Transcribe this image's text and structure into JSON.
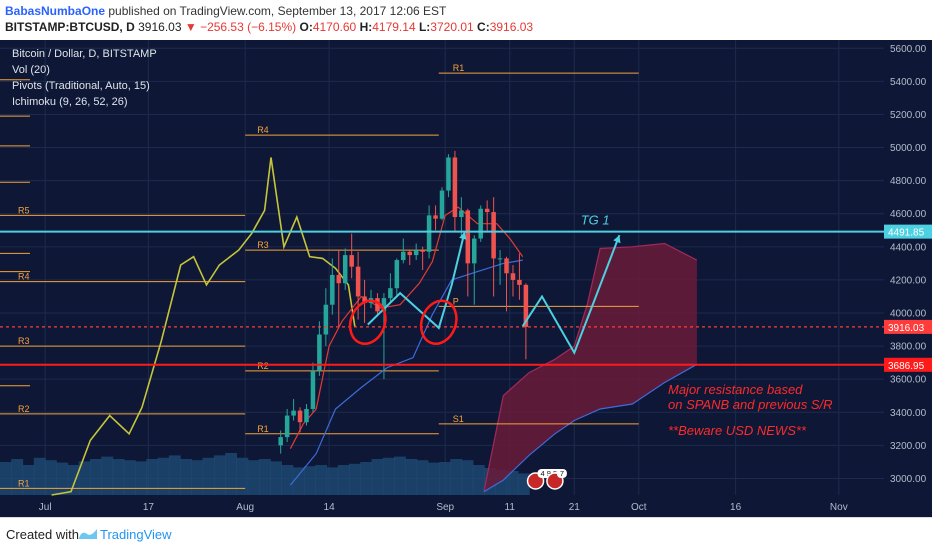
{
  "header": {
    "author": "BabasNumbaOne",
    "published_text": " published on TradingView.com, September 13, 2017 12:06 EST",
    "symbol": "BITSTAMP:BTCUSD, D",
    "price": "3916.03",
    "change": "▼ −256.53 (−6.15%)",
    "o_label": "O:",
    "o_value": "4170.60",
    "h_label": "H:",
    "h_value": "4179.14",
    "l_label": "L:",
    "l_value": "3720.01",
    "c_label": "C:",
    "c_value": "3916.03"
  },
  "legend": [
    "Bitcoin / Dollar, D, BITSTAMP",
    "Vol (20)",
    "Pivots (Traditional, Auto, 15)",
    "Ichimoku (9, 26, 52, 26)"
  ],
  "footer": {
    "created_with": "Created with",
    "brand": "TradingView"
  },
  "colors": {
    "background": "#0e1836",
    "up": "#26a69a",
    "down": "#ef5350",
    "pivot": "#f4a23c",
    "cyan": "#4dd0e1",
    "red_line": "#ff1a1a",
    "tenkan": "#e53935",
    "kijun": "#3f6ad8",
    "chikou": "#c6c43a",
    "cloud": "#6a1b3a"
  },
  "chart_data": {
    "type": "candlestick",
    "y_range": [
      2900,
      5650
    ],
    "y_ticks": [
      3000,
      3200,
      3400,
      3600,
      3800,
      4000,
      4200,
      4400,
      4600,
      4800,
      5000,
      5200,
      5400,
      5600
    ],
    "y_tick_labels": [
      "3000.00",
      "3200.00",
      "3400.00",
      "3600.00",
      "3800.00",
      "4000.00",
      "4200.00",
      "4400.00",
      "4600.00",
      "4800.00",
      "5000.00",
      "5200.00",
      "5400.00",
      "5600.00"
    ],
    "x_range": [
      "2017-06-24",
      "2017-11-08"
    ],
    "x_ticks": [
      {
        "date": "2017-07-01",
        "label": "Jul"
      },
      {
        "date": "2017-07-17",
        "label": "17"
      },
      {
        "date": "2017-08-01",
        "label": "Aug"
      },
      {
        "date": "2017-08-14",
        "label": "14"
      },
      {
        "date": "2017-09-01",
        "label": "Sep"
      },
      {
        "date": "2017-09-11",
        "label": "11"
      },
      {
        "date": "2017-09-21",
        "label": "21"
      },
      {
        "date": "2017-10-01",
        "label": "Oct"
      },
      {
        "date": "2017-10-16",
        "label": "16"
      },
      {
        "date": "2017-11-01",
        "label": "Nov"
      }
    ],
    "candles": [
      {
        "d": "2017-08-06",
        "o": 3200,
        "h": 3290,
        "l": 3150,
        "c": 3250
      },
      {
        "d": "2017-08-07",
        "o": 3250,
        "h": 3420,
        "l": 3220,
        "c": 3380
      },
      {
        "d": "2017-08-08",
        "o": 3380,
        "h": 3480,
        "l": 3350,
        "c": 3410
      },
      {
        "d": "2017-08-09",
        "o": 3410,
        "h": 3430,
        "l": 3280,
        "c": 3340
      },
      {
        "d": "2017-08-10",
        "o": 3340,
        "h": 3450,
        "l": 3320,
        "c": 3420
      },
      {
        "d": "2017-08-11",
        "o": 3420,
        "h": 3700,
        "l": 3400,
        "c": 3650
      },
      {
        "d": "2017-08-12",
        "o": 3650,
        "h": 3950,
        "l": 3620,
        "c": 3870
      },
      {
        "d": "2017-08-13",
        "o": 3870,
        "h": 4150,
        "l": 3800,
        "c": 4050
      },
      {
        "d": "2017-08-14",
        "o": 4050,
        "h": 4330,
        "l": 3990,
        "c": 4230
      },
      {
        "d": "2017-08-15",
        "o": 4230,
        "h": 4380,
        "l": 3920,
        "c": 4180
      },
      {
        "d": "2017-08-16",
        "o": 4180,
        "h": 4390,
        "l": 4140,
        "c": 4350
      },
      {
        "d": "2017-08-17",
        "o": 4350,
        "h": 4480,
        "l": 4210,
        "c": 4280
      },
      {
        "d": "2017-08-18",
        "o": 4280,
        "h": 4370,
        "l": 3960,
        "c": 4100
      },
      {
        "d": "2017-08-19",
        "o": 4100,
        "h": 4200,
        "l": 3940,
        "c": 4060
      },
      {
        "d": "2017-08-20",
        "o": 4060,
        "h": 4140,
        "l": 4030,
        "c": 4090
      },
      {
        "d": "2017-08-21",
        "o": 4090,
        "h": 4120,
        "l": 3980,
        "c": 4010
      },
      {
        "d": "2017-08-22",
        "o": 4010,
        "h": 4120,
        "l": 3600,
        "c": 4090
      },
      {
        "d": "2017-08-23",
        "o": 4090,
        "h": 4240,
        "l": 4060,
        "c": 4150
      },
      {
        "d": "2017-08-24",
        "o": 4150,
        "h": 4330,
        "l": 4100,
        "c": 4320
      },
      {
        "d": "2017-08-25",
        "o": 4320,
        "h": 4450,
        "l": 4300,
        "c": 4370
      },
      {
        "d": "2017-08-26",
        "o": 4370,
        "h": 4380,
        "l": 4290,
        "c": 4350
      },
      {
        "d": "2017-08-27",
        "o": 4350,
        "h": 4420,
        "l": 4320,
        "c": 4380
      },
      {
        "d": "2017-08-28",
        "o": 4380,
        "h": 4400,
        "l": 4260,
        "c": 4370
      },
      {
        "d": "2017-08-29",
        "o": 4370,
        "h": 4650,
        "l": 4330,
        "c": 4590
      },
      {
        "d": "2017-08-30",
        "o": 4590,
        "h": 4650,
        "l": 4500,
        "c": 4570
      },
      {
        "d": "2017-08-31",
        "o": 4570,
        "h": 4760,
        "l": 4560,
        "c": 4740
      },
      {
        "d": "2017-09-01",
        "o": 4740,
        "h": 4960,
        "l": 4700,
        "c": 4940
      },
      {
        "d": "2017-09-02",
        "o": 4940,
        "h": 4980,
        "l": 4490,
        "c": 4580
      },
      {
        "d": "2017-09-03",
        "o": 4580,
        "h": 4700,
        "l": 4450,
        "c": 4620
      },
      {
        "d": "2017-09-04",
        "o": 4620,
        "h": 4630,
        "l": 4100,
        "c": 4300
      },
      {
        "d": "2017-09-05",
        "o": 4300,
        "h": 4470,
        "l": 4050,
        "c": 4450
      },
      {
        "d": "2017-09-06",
        "o": 4450,
        "h": 4650,
        "l": 4430,
        "c": 4630
      },
      {
        "d": "2017-09-07",
        "o": 4630,
        "h": 4680,
        "l": 4490,
        "c": 4610
      },
      {
        "d": "2017-09-08",
        "o": 4610,
        "h": 4700,
        "l": 4100,
        "c": 4330
      },
      {
        "d": "2017-09-09",
        "o": 4330,
        "h": 4380,
        "l": 4170,
        "c": 4330
      },
      {
        "d": "2017-09-10",
        "o": 4330,
        "h": 4340,
        "l": 4010,
        "c": 4240
      },
      {
        "d": "2017-09-11",
        "o": 4240,
        "h": 4290,
        "l": 4100,
        "c": 4200
      },
      {
        "d": "2017-09-12",
        "o": 4200,
        "h": 4360,
        "l": 4080,
        "c": 4170
      },
      {
        "d": "2017-09-13",
        "o": 4170,
        "h": 4179,
        "l": 3720,
        "c": 3916
      }
    ],
    "pivot_levels": [
      {
        "label": "R1",
        "value": 5450,
        "from": "2017-08-31",
        "to": "2017-10-01"
      },
      {
        "label": "R4",
        "value": 5075,
        "from": "2017-08-01",
        "to": "2017-08-31"
      },
      {
        "label": "R3",
        "value": 4380,
        "from": "2017-08-01",
        "to": "2017-08-31"
      },
      {
        "label": "R2",
        "value": 3650,
        "from": "2017-08-01",
        "to": "2017-08-31"
      },
      {
        "label": "R1",
        "value": 3270,
        "from": "2017-08-01",
        "to": "2017-08-31"
      },
      {
        "label": "P",
        "value": 4040,
        "from": "2017-08-31",
        "to": "2017-10-01"
      },
      {
        "label": "S1",
        "value": 3330,
        "from": "2017-08-31",
        "to": "2017-10-01"
      },
      {
        "label": "R5",
        "value": 4590,
        "from": "2017-06-24",
        "to": "2017-08-01"
      },
      {
        "label": "R4",
        "value": 4190,
        "from": "2017-06-24",
        "to": "2017-08-01"
      },
      {
        "label": "R3",
        "value": 3800,
        "from": "2017-06-24",
        "to": "2017-08-01"
      },
      {
        "label": "R2",
        "value": 3390,
        "from": "2017-06-24",
        "to": "2017-08-01"
      },
      {
        "label": "R1",
        "value": 2940,
        "from": "2017-06-24",
        "to": "2017-08-01"
      }
    ],
    "left_pivot_ticks": [
      5410,
      5190,
      5010,
      4790,
      4360,
      4250,
      3560
    ],
    "horizontal_levels": [
      {
        "value": 4491.85,
        "label": "4491.85",
        "color": "#4dd0e1"
      },
      {
        "value": 3916.03,
        "label": "3916.03",
        "color": "#ff3b3b",
        "dashed": true
      },
      {
        "value": 3686.95,
        "label": "3686.95",
        "color": "#ff1a1a"
      }
    ],
    "tenkan": [
      {
        "d": "2017-08-08",
        "v": 3180
      },
      {
        "d": "2017-08-10",
        "v": 3330
      },
      {
        "d": "2017-08-12",
        "v": 3420
      },
      {
        "d": "2017-08-14",
        "v": 3800
      },
      {
        "d": "2017-08-16",
        "v": 3950
      },
      {
        "d": "2017-08-19",
        "v": 4100
      },
      {
        "d": "2017-08-22",
        "v": 4030
      },
      {
        "d": "2017-08-25",
        "v": 4050
      },
      {
        "d": "2017-08-28",
        "v": 4180
      },
      {
        "d": "2017-08-30",
        "v": 4310
      },
      {
        "d": "2017-09-01",
        "v": 4590
      },
      {
        "d": "2017-09-03",
        "v": 4640
      },
      {
        "d": "2017-09-06",
        "v": 4540
      },
      {
        "d": "2017-09-09",
        "v": 4540
      },
      {
        "d": "2017-09-11",
        "v": 4450
      },
      {
        "d": "2017-09-13",
        "v": 4340
      }
    ],
    "kijun": [
      {
        "d": "2017-08-08",
        "v": 2960
      },
      {
        "d": "2017-08-12",
        "v": 3150
      },
      {
        "d": "2017-08-15",
        "v": 3420
      },
      {
        "d": "2017-08-19",
        "v": 3550
      },
      {
        "d": "2017-08-23",
        "v": 3670
      },
      {
        "d": "2017-08-27",
        "v": 3730
      },
      {
        "d": "2017-08-30",
        "v": 3990
      },
      {
        "d": "2017-09-02",
        "v": 4200
      },
      {
        "d": "2017-09-06",
        "v": 4250
      },
      {
        "d": "2017-09-10",
        "v": 4300
      },
      {
        "d": "2017-09-13",
        "v": 4320
      }
    ],
    "chikou": [
      {
        "d": "2017-07-02",
        "v": 2900
      },
      {
        "d": "2017-07-05",
        "v": 2920
      },
      {
        "d": "2017-07-08",
        "v": 3230
      },
      {
        "d": "2017-07-11",
        "v": 3380
      },
      {
        "d": "2017-07-14",
        "v": 3270
      },
      {
        "d": "2017-07-16",
        "v": 3430
      },
      {
        "d": "2017-07-19",
        "v": 3830
      },
      {
        "d": "2017-07-22",
        "v": 4290
      },
      {
        "d": "2017-07-24",
        "v": 4340
      },
      {
        "d": "2017-07-26",
        "v": 4170
      },
      {
        "d": "2017-07-28",
        "v": 4290
      },
      {
        "d": "2017-07-31",
        "v": 4380
      },
      {
        "d": "2017-08-02",
        "v": 4480
      },
      {
        "d": "2017-08-04",
        "v": 4620
      },
      {
        "d": "2017-08-05",
        "v": 4940
      },
      {
        "d": "2017-08-07",
        "v": 4400
      },
      {
        "d": "2017-08-09",
        "v": 4580
      },
      {
        "d": "2017-08-11",
        "v": 4340
      },
      {
        "d": "2017-08-13",
        "v": 4330
      },
      {
        "d": "2017-08-15",
        "v": 4270
      },
      {
        "d": "2017-08-17",
        "v": 4170
      },
      {
        "d": "2017-08-18",
        "v": 3916
      }
    ],
    "cloud_span_a": [
      {
        "d": "2017-09-07",
        "v": 2920
      },
      {
        "d": "2017-09-10",
        "v": 3500
      },
      {
        "d": "2017-09-14",
        "v": 3640
      },
      {
        "d": "2017-09-18",
        "v": 3720
      },
      {
        "d": "2017-09-21",
        "v": 3800
      },
      {
        "d": "2017-09-23",
        "v": 4050
      },
      {
        "d": "2017-09-25",
        "v": 4390
      },
      {
        "d": "2017-09-30",
        "v": 4400
      },
      {
        "d": "2017-10-05",
        "v": 4420
      },
      {
        "d": "2017-10-10",
        "v": 4320
      }
    ],
    "cloud_span_b": [
      {
        "d": "2017-09-07",
        "v": 2920
      },
      {
        "d": "2017-09-10",
        "v": 2990
      },
      {
        "d": "2017-09-14",
        "v": 3140
      },
      {
        "d": "2017-09-18",
        "v": 3270
      },
      {
        "d": "2017-09-21",
        "v": 3350
      },
      {
        "d": "2017-09-25",
        "v": 3420
      },
      {
        "d": "2017-09-30",
        "v": 3450
      },
      {
        "d": "2017-10-05",
        "v": 3580
      },
      {
        "d": "2017-10-10",
        "v": 3690
      }
    ],
    "volume_profile": [
      0.55,
      0.6,
      0.5,
      0.62,
      0.58,
      0.54,
      0.5,
      0.56,
      0.6,
      0.64,
      0.6,
      0.58,
      0.56,
      0.6,
      0.62,
      0.66,
      0.6,
      0.58,
      0.62,
      0.66,
      0.7,
      0.62,
      0.58,
      0.6,
      0.56,
      0.5,
      0.46,
      0.48,
      0.5,
      0.46,
      0.5,
      0.52,
      0.55,
      0.6,
      0.62,
      0.64,
      0.6,
      0.58,
      0.54,
      0.55,
      0.6,
      0.58,
      0.5,
      0.45,
      0.42,
      0.4,
      0.36
    ],
    "forecast_path": [
      {
        "d": "2017-08-20",
        "v": 3930
      },
      {
        "d": "2017-08-25",
        "v": 4120
      },
      {
        "d": "2017-08-31",
        "v": 3910
      },
      {
        "d": "2017-09-02",
        "v": 4170
      },
      {
        "d": "2017-09-04",
        "v": 4490
      }
    ],
    "forecast_path_2": [
      {
        "d": "2017-09-13",
        "v": 3920
      },
      {
        "d": "2017-09-16",
        "v": 4100
      },
      {
        "d": "2017-09-21",
        "v": 3760
      },
      {
        "d": "2017-09-28",
        "v": 4470
      }
    ],
    "circles": [
      {
        "d": "2017-08-20",
        "v": 3920
      },
      {
        "d": "2017-08-31",
        "v": 3920
      }
    ],
    "annotations": {
      "tg": "TG 1",
      "note1": "Major resistance based",
      "note2": "on SPANB and previous S/R",
      "note3": "**Beware USD NEWS**"
    },
    "event_badges": [
      {
        "d": "2017-09-15",
        "text": "4 9 5"
      },
      {
        "d": "2017-09-18",
        "text": "7"
      }
    ]
  }
}
